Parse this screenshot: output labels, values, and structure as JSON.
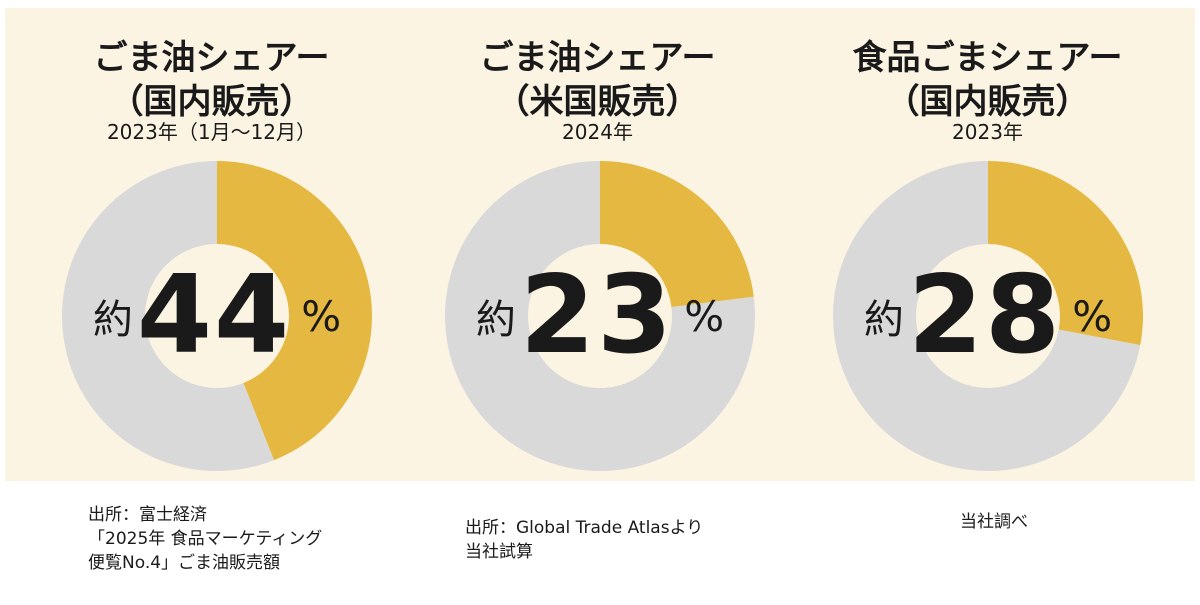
{
  "colors": {
    "share": "#e5b842",
    "rest": "#d9d9d9",
    "hole": "#fcf4e3",
    "background": "#fcf4e3"
  },
  "chart_data": [
    {
      "type": "pie",
      "title_lines": [
        "ごま油シェアー",
        "（国内販売）"
      ],
      "subtitle": "2023年（1月～12月）",
      "share": 44,
      "center_prefix": "約",
      "center_value": "44",
      "center_unit": "%",
      "source_lines": [
        "出所：富士経済",
        "「2025年 食品マーケティング",
        "便覧No.4」ごま油販売額"
      ]
    },
    {
      "type": "pie",
      "title_lines": [
        "ごま油シェアー",
        "（米国販売）"
      ],
      "subtitle": "2024年",
      "share": 23,
      "center_prefix": "約",
      "center_value": "23",
      "center_unit": "%",
      "source_lines": [
        "出所：Global Trade Atlasより",
        "当社試算"
      ]
    },
    {
      "type": "pie",
      "title_lines": [
        "食品ごまシェアー",
        "（国内販売）"
      ],
      "subtitle": "2023年",
      "share": 28,
      "center_prefix": "約",
      "center_value": "28",
      "center_unit": "%",
      "source_lines": [
        "当社調べ"
      ]
    }
  ]
}
